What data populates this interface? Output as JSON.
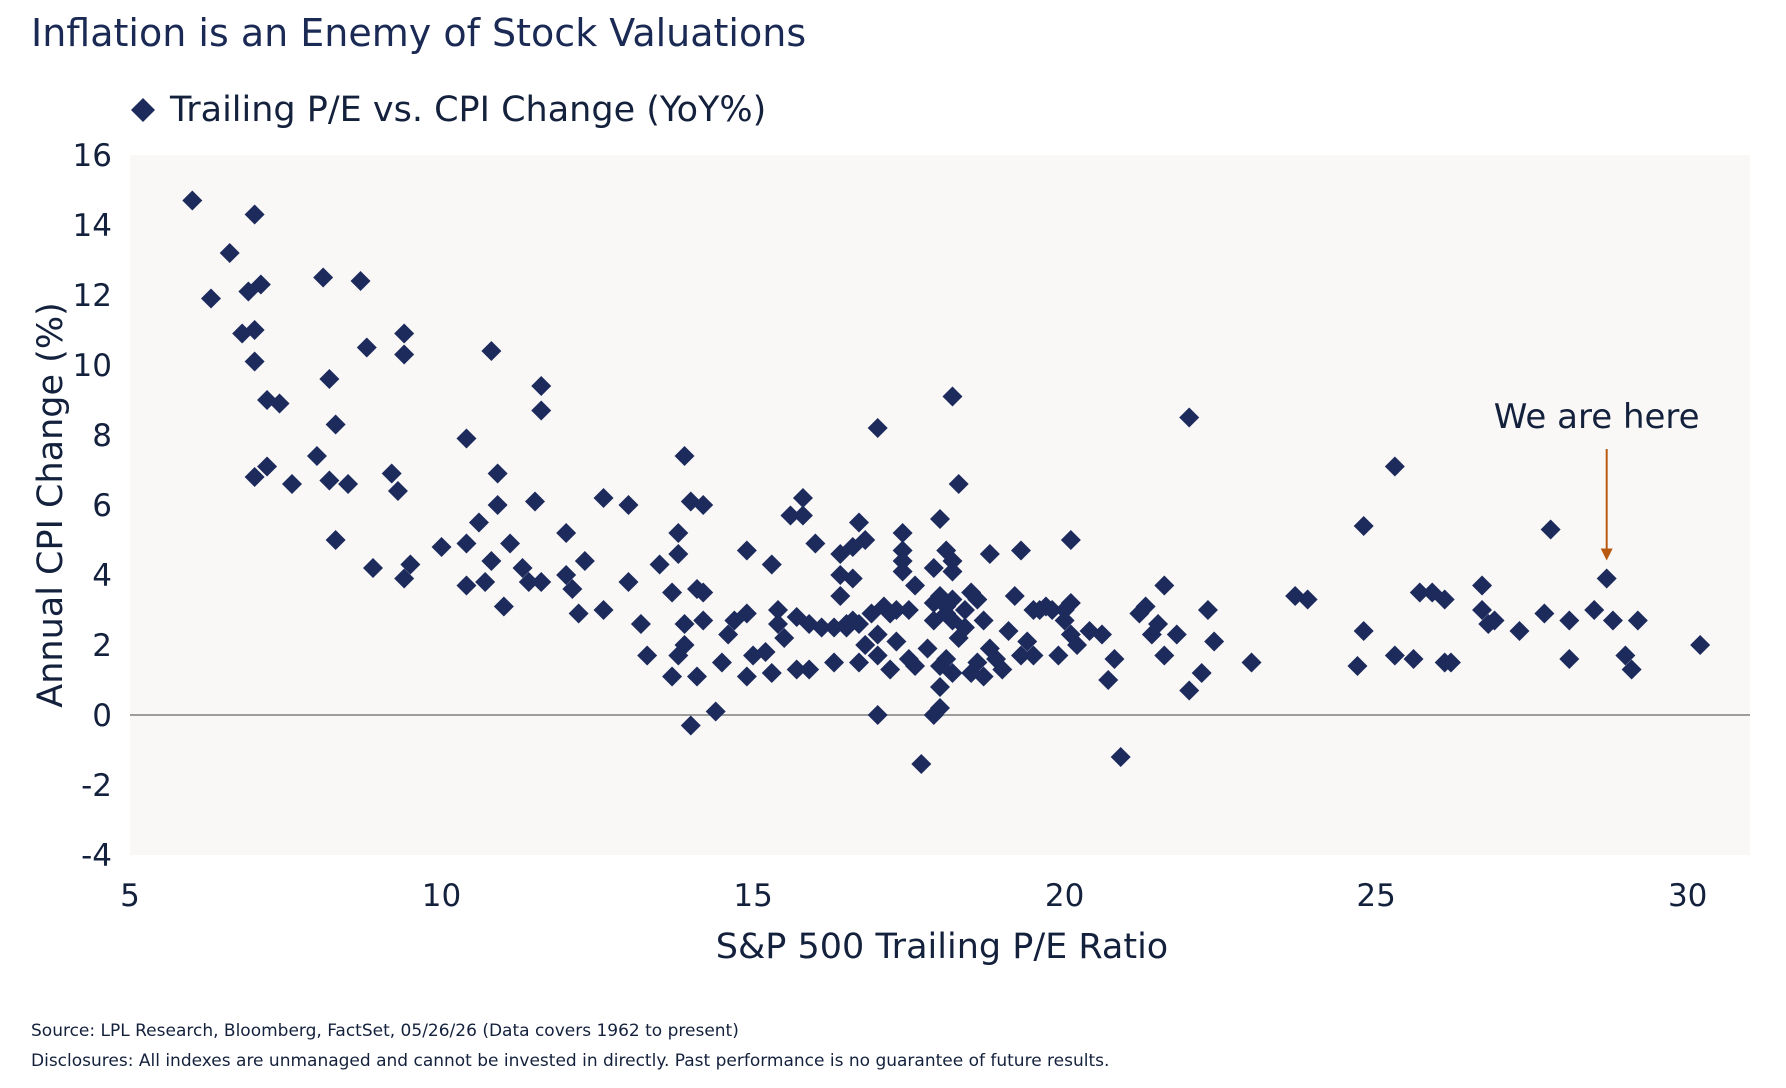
{
  "chart_data": {
    "type": "scatter",
    "title": "Inflation is an Enemy of Stock Valuations",
    "legend": {
      "label": "Trailing P/E vs. CPI Change (YoY%)",
      "placement": "top-left"
    },
    "xlabel": "S&P 500 Trailing P/E Ratio",
    "ylabel": "Annual CPI Change (%)",
    "xlim": [
      5,
      31
    ],
    "ylim": [
      -4,
      16
    ],
    "xticks": [
      5,
      10,
      15,
      20,
      25,
      30
    ],
    "yticks": [
      -4,
      -2,
      0,
      2,
      4,
      6,
      8,
      10,
      12,
      14,
      16
    ],
    "grid": false,
    "reference_line_y": 0,
    "annotation": {
      "text": "We are here",
      "point": [
        28.7,
        3.9
      ]
    },
    "colors": {
      "series": "#1d2a5c",
      "axis_text": "#14213d",
      "title": "#1b2a54",
      "plot_bg": "#f9f8f7",
      "zero_line": "#7f7f7f",
      "annotation_arrow": "#b85a12"
    },
    "series": [
      {
        "name": "Trailing P/E vs. CPI Change (YoY%)",
        "points": [
          [
            6.0,
            14.7
          ],
          [
            6.3,
            11.9
          ],
          [
            6.6,
            13.2
          ],
          [
            6.8,
            10.9
          ],
          [
            6.9,
            12.1
          ],
          [
            7.0,
            14.3
          ],
          [
            7.0,
            11.0
          ],
          [
            7.0,
            10.1
          ],
          [
            7.1,
            12.3
          ],
          [
            7.2,
            9.0
          ],
          [
            7.4,
            8.9
          ],
          [
            7.0,
            6.8
          ],
          [
            7.2,
            7.1
          ],
          [
            7.6,
            6.6
          ],
          [
            8.0,
            7.4
          ],
          [
            8.1,
            12.5
          ],
          [
            8.2,
            9.6
          ],
          [
            8.3,
            8.3
          ],
          [
            8.2,
            6.7
          ],
          [
            8.5,
            6.6
          ],
          [
            8.3,
            5.0
          ],
          [
            8.7,
            12.4
          ],
          [
            8.8,
            10.5
          ],
          [
            8.9,
            4.2
          ],
          [
            9.2,
            6.9
          ],
          [
            9.3,
            6.4
          ],
          [
            9.4,
            10.9
          ],
          [
            9.4,
            10.3
          ],
          [
            9.5,
            4.3
          ],
          [
            9.4,
            3.9
          ],
          [
            10.0,
            4.8
          ],
          [
            10.4,
            7.9
          ],
          [
            10.4,
            4.9
          ],
          [
            10.6,
            5.5
          ],
          [
            10.4,
            3.7
          ],
          [
            10.7,
            3.8
          ],
          [
            10.8,
            10.4
          ],
          [
            10.8,
            4.4
          ],
          [
            10.9,
            6.0
          ],
          [
            10.9,
            6.9
          ],
          [
            11.0,
            3.1
          ],
          [
            11.1,
            4.9
          ],
          [
            11.3,
            4.2
          ],
          [
            11.4,
            3.8
          ],
          [
            11.5,
            6.1
          ],
          [
            11.6,
            3.8
          ],
          [
            11.6,
            9.4
          ],
          [
            11.6,
            8.7
          ],
          [
            12.0,
            5.2
          ],
          [
            12.0,
            4.0
          ],
          [
            12.1,
            3.6
          ],
          [
            12.3,
            4.4
          ],
          [
            12.2,
            2.9
          ],
          [
            12.6,
            6.2
          ],
          [
            12.6,
            3.0
          ],
          [
            13.0,
            6.0
          ],
          [
            13.0,
            3.8
          ],
          [
            13.2,
            2.6
          ],
          [
            13.3,
            1.7
          ],
          [
            13.5,
            4.3
          ],
          [
            13.7,
            3.5
          ],
          [
            13.8,
            5.2
          ],
          [
            13.8,
            4.6
          ],
          [
            13.8,
            1.7
          ],
          [
            13.7,
            1.1
          ],
          [
            13.9,
            2.0
          ],
          [
            13.9,
            7.4
          ],
          [
            13.9,
            2.6
          ],
          [
            14.0,
            6.1
          ],
          [
            14.1,
            3.6
          ],
          [
            14.2,
            6.0
          ],
          [
            14.2,
            3.5
          ],
          [
            14.1,
            1.1
          ],
          [
            14.2,
            2.7
          ],
          [
            14.0,
            -0.3
          ],
          [
            14.4,
            0.1
          ],
          [
            14.5,
            1.5
          ],
          [
            14.6,
            2.3
          ],
          [
            14.7,
            2.7
          ],
          [
            14.9,
            4.7
          ],
          [
            14.9,
            2.9
          ],
          [
            15.0,
            1.7
          ],
          [
            14.9,
            1.1
          ],
          [
            15.2,
            1.8
          ],
          [
            15.3,
            4.3
          ],
          [
            15.4,
            3.0
          ],
          [
            15.4,
            2.6
          ],
          [
            15.5,
            2.2
          ],
          [
            15.3,
            1.2
          ],
          [
            15.6,
            5.7
          ],
          [
            15.7,
            2.8
          ],
          [
            15.7,
            1.3
          ],
          [
            15.8,
            6.2
          ],
          [
            15.8,
            5.7
          ],
          [
            15.9,
            2.6
          ],
          [
            15.9,
            1.3
          ],
          [
            16.0,
            4.9
          ],
          [
            16.1,
            2.5
          ],
          [
            16.3,
            2.5
          ],
          [
            16.3,
            1.5
          ],
          [
            16.4,
            4.6
          ],
          [
            16.4,
            4.0
          ],
          [
            16.4,
            3.4
          ],
          [
            16.5,
            2.6
          ],
          [
            16.5,
            2.5
          ],
          [
            16.6,
            4.8
          ],
          [
            16.6,
            3.9
          ],
          [
            16.6,
            2.7
          ],
          [
            16.7,
            5.5
          ],
          [
            16.7,
            2.6
          ],
          [
            16.8,
            5.0
          ],
          [
            16.8,
            2.0
          ],
          [
            16.7,
            1.5
          ],
          [
            16.9,
            2.9
          ],
          [
            17.0,
            2.3
          ],
          [
            17.0,
            1.7
          ],
          [
            17.0,
            0.0
          ],
          [
            17.0,
            8.2
          ],
          [
            17.1,
            3.1
          ],
          [
            17.2,
            2.9
          ],
          [
            17.2,
            1.3
          ],
          [
            17.3,
            3.0
          ],
          [
            17.3,
            2.1
          ],
          [
            17.4,
            5.2
          ],
          [
            17.4,
            4.7
          ],
          [
            17.4,
            4.4
          ],
          [
            17.4,
            4.1
          ],
          [
            17.5,
            3.0
          ],
          [
            17.5,
            1.6
          ],
          [
            17.6,
            3.7
          ],
          [
            17.6,
            1.4
          ],
          [
            17.7,
            -1.4
          ],
          [
            17.8,
            1.9
          ],
          [
            17.9,
            4.2
          ],
          [
            17.9,
            3.2
          ],
          [
            17.9,
            2.7
          ],
          [
            18.0,
            5.6
          ],
          [
            18.0,
            3.4
          ],
          [
            18.0,
            1.4
          ],
          [
            18.0,
            0.8
          ],
          [
            17.9,
            0.0
          ],
          [
            18.0,
            0.2
          ],
          [
            18.1,
            4.7
          ],
          [
            18.1,
            3.1
          ],
          [
            18.1,
            2.9
          ],
          [
            18.1,
            1.6
          ],
          [
            18.2,
            4.4
          ],
          [
            18.2,
            4.1
          ],
          [
            18.2,
            3.3
          ],
          [
            18.2,
            2.7
          ],
          [
            18.2,
            1.2
          ],
          [
            18.2,
            9.1
          ],
          [
            18.3,
            6.6
          ],
          [
            18.3,
            2.2
          ],
          [
            18.4,
            3.0
          ],
          [
            18.4,
            2.5
          ],
          [
            18.5,
            3.5
          ],
          [
            18.5,
            1.2
          ],
          [
            18.6,
            3.3
          ],
          [
            18.6,
            1.5
          ],
          [
            18.7,
            1.1
          ],
          [
            18.7,
            2.7
          ],
          [
            18.8,
            4.6
          ],
          [
            18.8,
            1.9
          ],
          [
            18.9,
            1.6
          ],
          [
            19.0,
            1.3
          ],
          [
            19.1,
            2.4
          ],
          [
            19.2,
            3.4
          ],
          [
            19.3,
            1.7
          ],
          [
            19.3,
            4.7
          ],
          [
            19.4,
            2.1
          ],
          [
            19.5,
            3.0
          ],
          [
            19.5,
            1.7
          ],
          [
            19.6,
            3.0
          ],
          [
            19.7,
            3.1
          ],
          [
            19.8,
            3.0
          ],
          [
            19.9,
            1.7
          ],
          [
            20.0,
            3.0
          ],
          [
            20.0,
            2.7
          ],
          [
            20.1,
            5.0
          ],
          [
            20.1,
            3.2
          ],
          [
            20.1,
            2.3
          ],
          [
            20.2,
            2.0
          ],
          [
            20.4,
            2.4
          ],
          [
            20.6,
            2.3
          ],
          [
            20.7,
            1.0
          ],
          [
            20.8,
            1.6
          ],
          [
            20.9,
            -1.2
          ],
          [
            21.2,
            2.9
          ],
          [
            21.3,
            3.1
          ],
          [
            21.4,
            2.3
          ],
          [
            21.5,
            2.6
          ],
          [
            21.6,
            3.7
          ],
          [
            21.6,
            1.7
          ],
          [
            21.8,
            2.3
          ],
          [
            22.0,
            8.5
          ],
          [
            22.0,
            0.7
          ],
          [
            22.2,
            1.2
          ],
          [
            22.3,
            3.0
          ],
          [
            22.4,
            2.1
          ],
          [
            23.0,
            1.5
          ],
          [
            23.7,
            3.4
          ],
          [
            23.9,
            3.3
          ],
          [
            24.7,
            1.4
          ],
          [
            24.8,
            5.4
          ],
          [
            24.8,
            2.4
          ],
          [
            25.3,
            7.1
          ],
          [
            25.3,
            1.7
          ],
          [
            25.6,
            1.6
          ],
          [
            25.7,
            3.5
          ],
          [
            25.9,
            3.5
          ],
          [
            26.1,
            3.3
          ],
          [
            26.1,
            1.5
          ],
          [
            26.2,
            1.5
          ],
          [
            26.7,
            3.7
          ],
          [
            26.7,
            3.0
          ],
          [
            26.8,
            2.6
          ],
          [
            26.9,
            2.7
          ],
          [
            27.3,
            2.4
          ],
          [
            27.7,
            2.9
          ],
          [
            27.8,
            5.3
          ],
          [
            28.1,
            1.6
          ],
          [
            28.1,
            2.7
          ],
          [
            28.5,
            3.0
          ],
          [
            28.7,
            3.9
          ],
          [
            28.8,
            2.7
          ],
          [
            29.0,
            1.7
          ],
          [
            29.1,
            1.3
          ],
          [
            29.2,
            2.7
          ],
          [
            30.2,
            2.0
          ]
        ]
      }
    ]
  },
  "footer": {
    "source": "Source: LPL Research, Bloomberg, FactSet, 05/26/26 (Data covers 1962 to present)",
    "disclosures": "Disclosures: All indexes are unmanaged and cannot be invested in directly. Past performance is no guarantee of future results."
  }
}
